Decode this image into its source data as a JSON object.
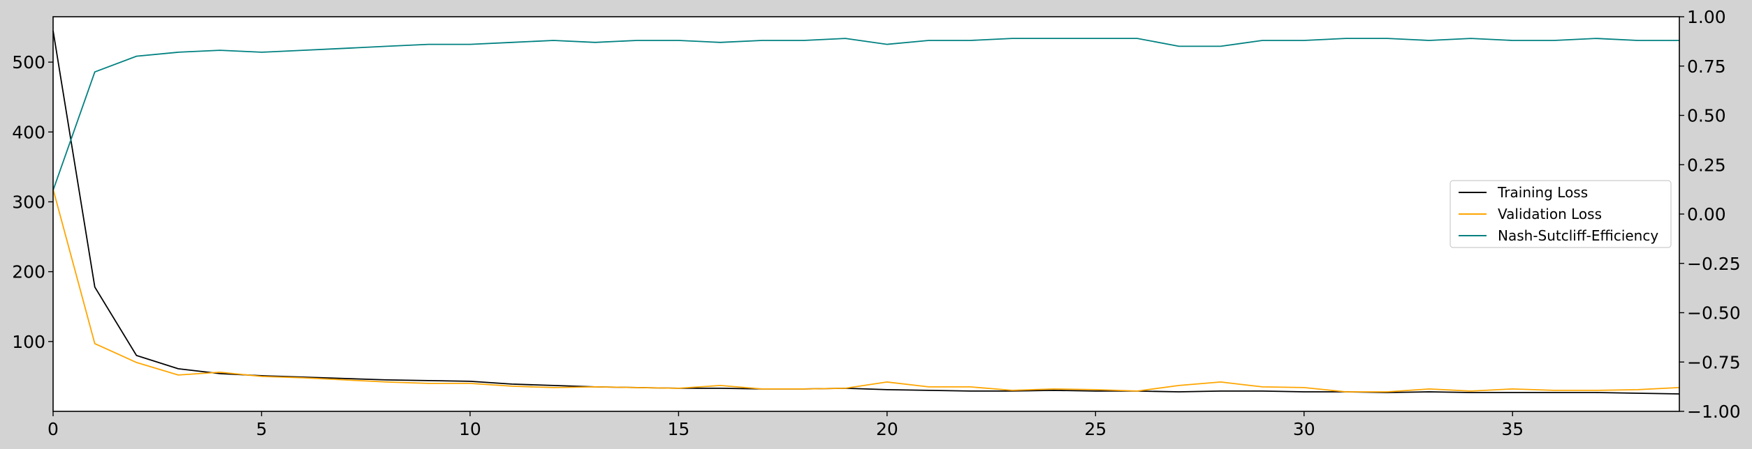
{
  "chart_data": {
    "type": "line",
    "title": "",
    "xlabel": "",
    "ylabel": "",
    "y2label": "",
    "xlim": [
      0,
      39
    ],
    "ylim": [
      0,
      565
    ],
    "y2lim": [
      -1.0,
      1.0
    ],
    "grid": false,
    "legend_position": "center-right",
    "x_ticks": [
      0,
      5,
      10,
      15,
      20,
      25,
      30,
      35
    ],
    "x_tick_labels": [
      "0",
      "5",
      "10",
      "15",
      "20",
      "25",
      "30",
      "35"
    ],
    "y_ticks": [
      100,
      200,
      300,
      400,
      500
    ],
    "y_tick_labels": [
      "100",
      "200",
      "300",
      "400",
      "500"
    ],
    "y2_ticks": [
      1.0,
      0.75,
      0.5,
      0.25,
      0.0,
      -0.25,
      -0.5,
      -0.75,
      -1.0
    ],
    "y2_tick_labels": [
      "1.00",
      "0.75",
      "0.50",
      "0.25",
      "0.00",
      "−0.25",
      "−0.50",
      "−0.75",
      "−1.00"
    ],
    "x": [
      0,
      1,
      2,
      3,
      4,
      5,
      6,
      7,
      8,
      9,
      10,
      11,
      12,
      13,
      14,
      15,
      16,
      17,
      18,
      19,
      20,
      21,
      22,
      23,
      24,
      25,
      26,
      27,
      28,
      29,
      30,
      31,
      32,
      33,
      34,
      35,
      36,
      37,
      38,
      39
    ],
    "series": [
      {
        "name": "Training Loss",
        "color": "#000000",
        "axis": "left",
        "values": [
          545,
          178,
          80,
          61,
          54,
          51,
          49,
          47,
          45,
          44,
          43,
          39,
          37,
          35,
          34,
          33,
          33,
          32,
          32,
          33,
          31,
          30,
          29,
          29,
          30,
          29,
          29,
          28,
          29,
          29,
          28,
          28,
          27,
          28,
          27,
          27,
          27,
          27,
          26,
          25
        ]
      },
      {
        "name": "Validation Loss",
        "color": "#ffa500",
        "axis": "left",
        "values": [
          318,
          97,
          70,
          52,
          56,
          50,
          48,
          45,
          42,
          40,
          40,
          36,
          34,
          35,
          34,
          33,
          37,
          32,
          32,
          33,
          42,
          35,
          35,
          30,
          32,
          31,
          29,
          37,
          42,
          35,
          34,
          28,
          28,
          32,
          29,
          32,
          30,
          30,
          31,
          34
        ]
      },
      {
        "name": "Nash-Sutcliff-Efficiency",
        "color": "#008080",
        "axis": "right",
        "values": [
          0.12,
          0.72,
          0.8,
          0.82,
          0.83,
          0.82,
          0.83,
          0.84,
          0.85,
          0.86,
          0.86,
          0.87,
          0.88,
          0.87,
          0.88,
          0.88,
          0.87,
          0.88,
          0.88,
          0.89,
          0.86,
          0.88,
          0.88,
          0.89,
          0.89,
          0.89,
          0.89,
          0.85,
          0.85,
          0.88,
          0.88,
          0.89,
          0.89,
          0.88,
          0.89,
          0.88,
          0.88,
          0.89,
          0.88,
          0.88
        ]
      }
    ]
  }
}
